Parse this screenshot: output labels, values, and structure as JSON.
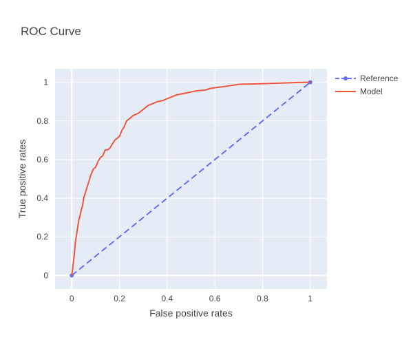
{
  "chart_data": {
    "type": "line",
    "title": "ROC Curve",
    "xlabel": "False positive rates",
    "ylabel": "True positive rates",
    "xlim": [
      -0.07,
      1.07
    ],
    "ylim": [
      -0.07,
      1.07
    ],
    "xticks": [
      0,
      0.2,
      0.4,
      0.6,
      0.8,
      1
    ],
    "xtick_labels": [
      "0",
      "0.2",
      "0.4",
      "0.6",
      "0.8",
      "1"
    ],
    "yticks": [
      0,
      0.2,
      0.4,
      0.6,
      0.8,
      1
    ],
    "ytick_labels": [
      "0",
      "0.2",
      "0.4",
      "0.6",
      "0.8",
      "1"
    ],
    "grid": true,
    "legend_position": "top-right-outside",
    "colors": {
      "plot_bg": "#e5ecf6",
      "grid": "#ffffff",
      "text": "#444444"
    },
    "series": [
      {
        "name": "Reference",
        "color": "#636efa",
        "style": "dashed",
        "markers": true,
        "x": [
          0,
          1
        ],
        "y": [
          0,
          1
        ]
      },
      {
        "name": "Model",
        "color": "#ef553b",
        "style": "solid",
        "markers": false,
        "x": [
          0,
          0.005,
          0.01,
          0.015,
          0.02,
          0.025,
          0.03,
          0.035,
          0.04,
          0.045,
          0.05,
          0.055,
          0.06,
          0.065,
          0.07,
          0.08,
          0.09,
          0.1,
          0.11,
          0.12,
          0.13,
          0.14,
          0.15,
          0.16,
          0.17,
          0.18,
          0.19,
          0.2,
          0.21,
          0.22,
          0.23,
          0.24,
          0.25,
          0.26,
          0.27,
          0.28,
          0.3,
          0.32,
          0.34,
          0.36,
          0.38,
          0.4,
          0.42,
          0.44,
          0.46,
          0.48,
          0.5,
          0.52,
          0.54,
          0.56,
          0.58,
          0.6,
          0.62,
          0.64,
          0.66,
          0.68,
          0.7,
          0.75,
          0.8,
          0.85,
          0.9,
          0.95,
          1
        ],
        "y": [
          0,
          0.05,
          0.1,
          0.17,
          0.21,
          0.25,
          0.29,
          0.31,
          0.34,
          0.36,
          0.4,
          0.42,
          0.44,
          0.46,
          0.48,
          0.52,
          0.55,
          0.56,
          0.59,
          0.61,
          0.62,
          0.65,
          0.65,
          0.66,
          0.68,
          0.7,
          0.71,
          0.72,
          0.75,
          0.77,
          0.8,
          0.81,
          0.82,
          0.83,
          0.835,
          0.84,
          0.86,
          0.88,
          0.89,
          0.9,
          0.905,
          0.915,
          0.925,
          0.935,
          0.94,
          0.945,
          0.95,
          0.955,
          0.958,
          0.96,
          0.968,
          0.972,
          0.975,
          0.978,
          0.982,
          0.986,
          0.99,
          0.991,
          0.993,
          0.995,
          0.997,
          0.999,
          1.0
        ]
      }
    ]
  }
}
